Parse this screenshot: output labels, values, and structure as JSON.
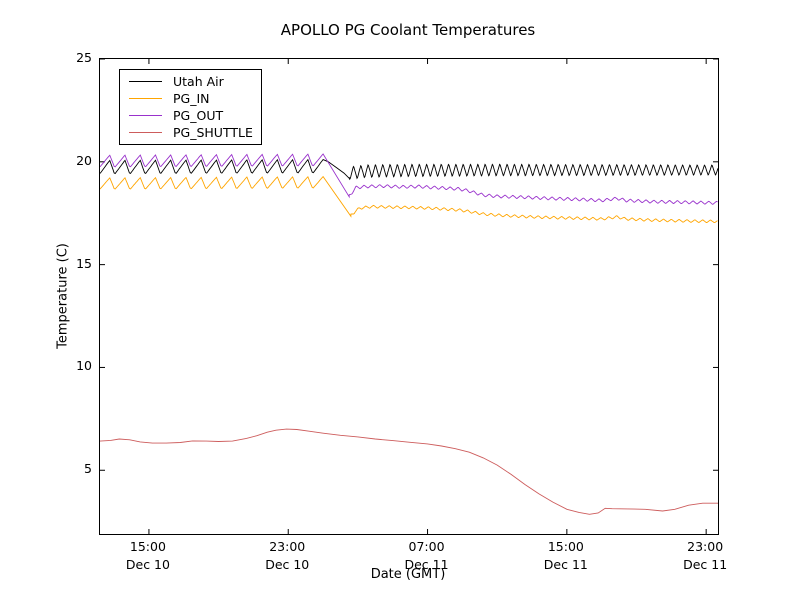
{
  "chart_data": {
    "type": "line",
    "title": "APOLLO PG Coolant Temperatures",
    "xlabel": "Date (GMT)",
    "ylabel": "Temperature (C)",
    "x_unit": "hours since Dec 10 00:00 GMT",
    "xlim_hours": [
      12.19,
      47.68
    ],
    "ylim": [
      1.9,
      25
    ],
    "grid": false,
    "legend_position": "upper left",
    "yticks": [
      25,
      20,
      15,
      10,
      5
    ],
    "xticks": [
      {
        "hour": 15,
        "time": "15:00",
        "date": "Dec 10"
      },
      {
        "hour": 23,
        "time": "23:00",
        "date": "Dec 10"
      },
      {
        "hour": 31,
        "time": "07:00",
        "date": "Dec 11"
      },
      {
        "hour": 39,
        "time": "15:00",
        "date": "Dec 11"
      },
      {
        "hour": 47,
        "time": "23:00",
        "date": "Dec 11"
      }
    ],
    "series": [
      {
        "name": "Utah Air",
        "color": "#000000",
        "segments": [
          {
            "type": "osc",
            "from": 12.19,
            "to": 25.0,
            "period": 0.875,
            "peak_at": 25.0,
            "rise_frac": 0.68,
            "amp_from": 0.34,
            "amp_to": 0.34,
            "baseline": [
              [
                12.19,
                19.73
              ],
              [
                25.0,
                19.77
              ]
            ]
          },
          {
            "type": "line",
            "points": [
              [
                25.0,
                20.11
              ],
              [
                25.3,
                20.0
              ],
              [
                25.8,
                19.7
              ],
              [
                26.2,
                19.45
              ],
              [
                26.5,
                19.2
              ]
            ]
          },
          {
            "type": "osc",
            "from": 26.5,
            "to": 47.68,
            "period": 0.42,
            "peak_at": 26.75,
            "rise_frac": 0.5,
            "amp_from": 0.33,
            "amp_to": 0.26,
            "baseline": [
              [
                26.5,
                19.45
              ],
              [
                27.5,
                19.55
              ],
              [
                30.0,
                19.58
              ],
              [
                35.0,
                19.6
              ],
              [
                40.0,
                19.6
              ],
              [
                47.68,
                19.6
              ]
            ]
          }
        ]
      },
      {
        "name": "PG_IN",
        "color": "#FFA500",
        "segments": [
          {
            "type": "osc",
            "from": 12.19,
            "to": 25.0,
            "period": 0.875,
            "peak_at": 25.0,
            "rise_frac": 0.68,
            "amp_from": 0.29,
            "amp_to": 0.29,
            "baseline": [
              [
                12.19,
                18.93
              ],
              [
                25.0,
                18.99
              ]
            ]
          },
          {
            "type": "line",
            "points": [
              [
                25.0,
                19.28
              ],
              [
                26.6,
                17.35
              ]
            ]
          },
          {
            "type": "osc",
            "from": 26.6,
            "to": 47.68,
            "period": 0.45,
            "peak_at": 27.0,
            "rise_frac": 0.5,
            "amp_from": 0.07,
            "amp_to": 0.07,
            "baseline": [
              [
                26.6,
                17.42
              ],
              [
                27.1,
                17.75
              ],
              [
                27.8,
                17.82
              ],
              [
                28.8,
                17.8
              ],
              [
                30.0,
                17.78
              ],
              [
                31.0,
                17.75
              ],
              [
                32.0,
                17.7
              ],
              [
                32.9,
                17.65
              ],
              [
                33.6,
                17.55
              ],
              [
                34.3,
                17.45
              ],
              [
                35.5,
                17.38
              ],
              [
                37.0,
                17.32
              ],
              [
                38.5,
                17.28
              ],
              [
                40.0,
                17.25
              ],
              [
                41.0,
                17.22
              ],
              [
                41.9,
                17.32
              ],
              [
                42.4,
                17.22
              ],
              [
                44.0,
                17.16
              ],
              [
                46.0,
                17.12
              ],
              [
                47.68,
                17.1
              ]
            ]
          }
        ]
      },
      {
        "name": "PG_OUT",
        "color": "#9932CC",
        "segments": [
          {
            "type": "osc",
            "from": 12.19,
            "to": 25.0,
            "period": 0.875,
            "peak_at": 25.0,
            "rise_frac": 0.68,
            "amp_from": 0.3,
            "amp_to": 0.3,
            "baseline": [
              [
                12.19,
                20.02
              ],
              [
                25.0,
                20.08
              ]
            ]
          },
          {
            "type": "line",
            "points": [
              [
                25.0,
                20.38
              ],
              [
                26.5,
                18.3
              ]
            ]
          },
          {
            "type": "osc",
            "from": 26.5,
            "to": 47.68,
            "period": 0.45,
            "peak_at": 26.9,
            "rise_frac": 0.5,
            "amp_from": 0.08,
            "amp_to": 0.08,
            "baseline": [
              [
                26.5,
                18.35
              ],
              [
                26.9,
                18.75
              ],
              [
                27.5,
                18.8
              ],
              [
                28.5,
                18.82
              ],
              [
                29.5,
                18.78
              ],
              [
                30.5,
                18.8
              ],
              [
                31.3,
                18.75
              ],
              [
                32.0,
                18.72
              ],
              [
                32.8,
                18.68
              ],
              [
                33.3,
                18.6
              ],
              [
                34.2,
                18.38
              ],
              [
                35.0,
                18.32
              ],
              [
                36.5,
                18.28
              ],
              [
                38.0,
                18.22
              ],
              [
                39.5,
                18.18
              ],
              [
                41.0,
                18.12
              ],
              [
                41.9,
                18.22
              ],
              [
                42.4,
                18.12
              ],
              [
                44.0,
                18.06
              ],
              [
                46.0,
                18.03
              ],
              [
                47.68,
                18.0
              ]
            ]
          }
        ]
      },
      {
        "name": "PG_SHUTTLE",
        "color": "#CD5C5C",
        "segments": [
          {
            "type": "line",
            "points": [
              [
                12.19,
                6.42
              ],
              [
                12.8,
                6.45
              ],
              [
                13.3,
                6.52
              ],
              [
                13.9,
                6.48
              ],
              [
                14.5,
                6.38
              ],
              [
                15.2,
                6.32
              ],
              [
                16.0,
                6.32
              ],
              [
                16.8,
                6.35
              ],
              [
                17.5,
                6.43
              ],
              [
                18.3,
                6.42
              ],
              [
                19.0,
                6.4
              ],
              [
                19.8,
                6.42
              ],
              [
                20.6,
                6.55
              ],
              [
                21.2,
                6.68
              ],
              [
                21.8,
                6.85
              ],
              [
                22.3,
                6.95
              ],
              [
                22.9,
                7.0
              ],
              [
                23.5,
                6.98
              ],
              [
                24.2,
                6.9
              ],
              [
                25.0,
                6.8
              ],
              [
                26.0,
                6.7
              ],
              [
                27.0,
                6.62
              ],
              [
                28.0,
                6.52
              ],
              [
                29.0,
                6.44
              ],
              [
                30.0,
                6.36
              ],
              [
                31.0,
                6.28
              ],
              [
                31.8,
                6.18
              ],
              [
                32.6,
                6.05
              ],
              [
                33.4,
                5.88
              ],
              [
                34.2,
                5.6
              ],
              [
                35.0,
                5.25
              ],
              [
                35.8,
                4.8
              ],
              [
                36.6,
                4.3
              ],
              [
                37.4,
                3.85
              ],
              [
                38.2,
                3.45
              ],
              [
                39.0,
                3.1
              ],
              [
                39.7,
                2.95
              ],
              [
                40.3,
                2.86
              ],
              [
                40.8,
                2.92
              ],
              [
                41.2,
                3.15
              ],
              [
                41.6,
                3.13
              ],
              [
                42.5,
                3.12
              ],
              [
                43.5,
                3.1
              ],
              [
                44.5,
                3.02
              ],
              [
                45.2,
                3.1
              ],
              [
                46.0,
                3.3
              ],
              [
                46.8,
                3.4
              ],
              [
                47.68,
                3.4
              ]
            ]
          }
        ]
      }
    ]
  }
}
